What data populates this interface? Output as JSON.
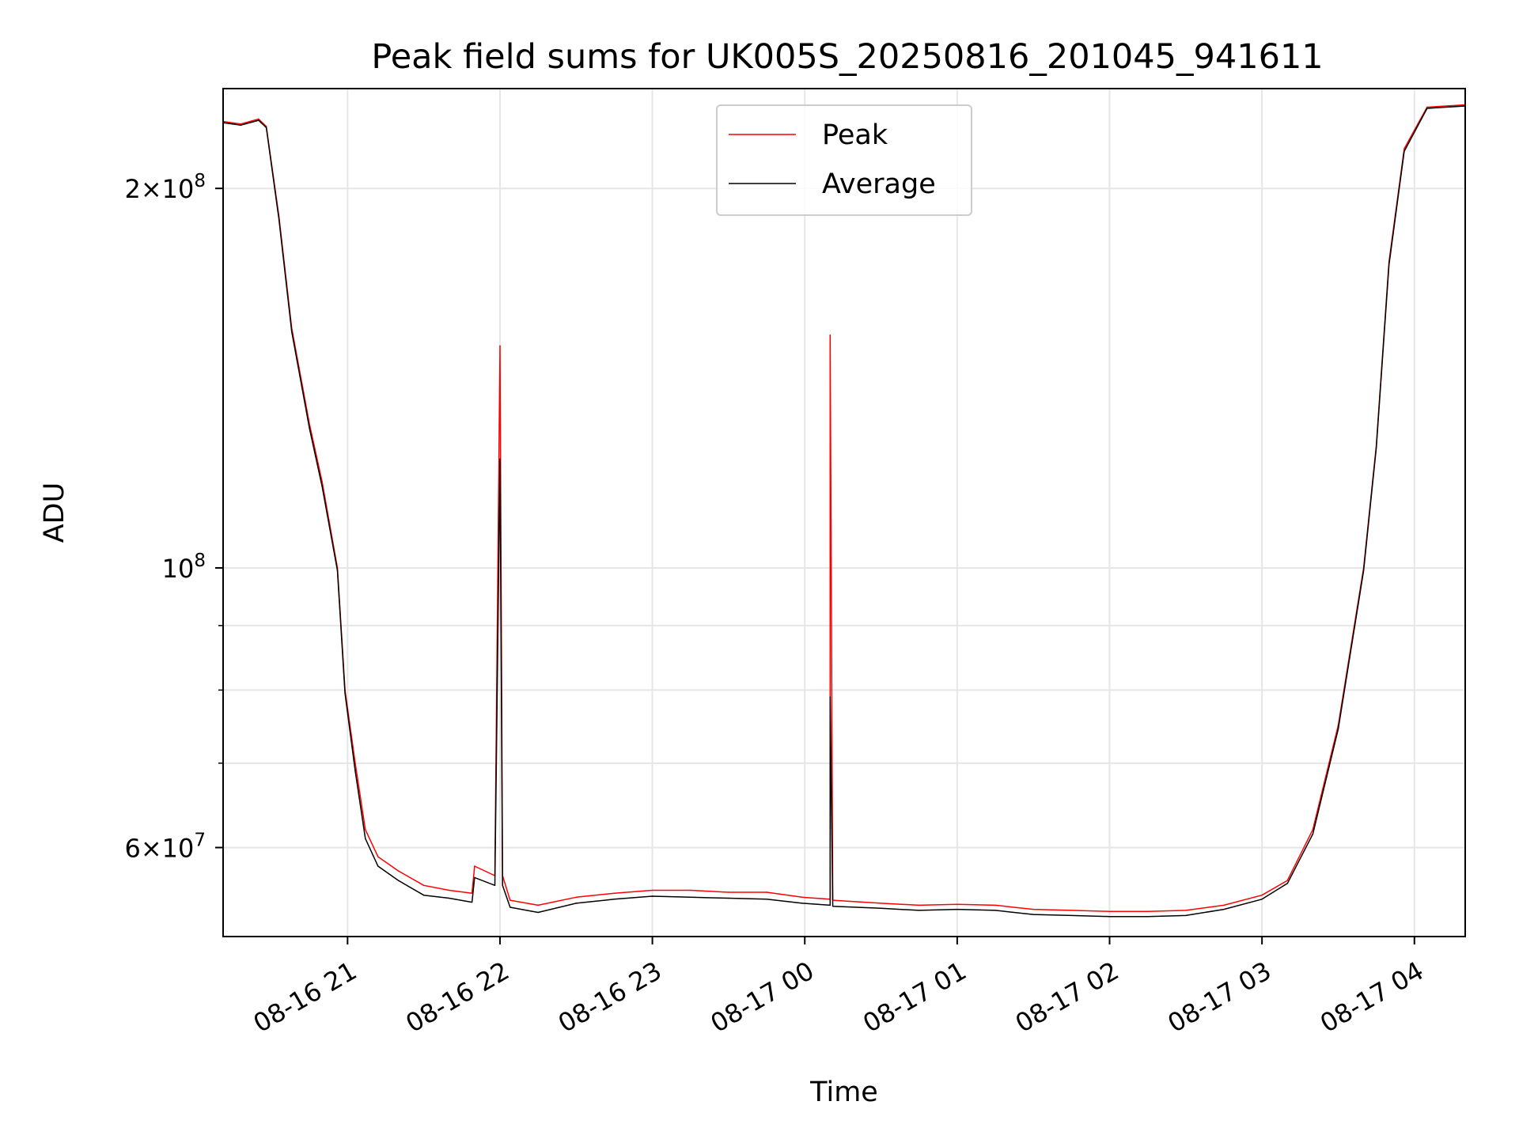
{
  "chart_data": {
    "type": "line",
    "title": "Peak field sums for UK005S_20250816_201045_941611",
    "xlabel": "Time",
    "ylabel": "ADU",
    "x_start": "2025-08-16 20:11",
    "x_end": "2025-08-17 04:20",
    "y_scale": "log",
    "ylim": [
      51000000,
      240000000
    ],
    "grid": true,
    "legend_position": "upper center",
    "x_ticks": [
      {
        "x": "2025-08-16 21:00",
        "label": "08-16 21"
      },
      {
        "x": "2025-08-16 22:00",
        "label": "08-16 22"
      },
      {
        "x": "2025-08-16 23:00",
        "label": "08-16 23"
      },
      {
        "x": "2025-08-17 00:00",
        "label": "08-17 00"
      },
      {
        "x": "2025-08-17 01:00",
        "label": "08-17 01"
      },
      {
        "x": "2025-08-17 02:00",
        "label": "08-17 02"
      },
      {
        "x": "2025-08-17 03:00",
        "label": "08-17 03"
      },
      {
        "x": "2025-08-17 04:00",
        "label": "08-17 04"
      }
    ],
    "y_ticks_major": [
      {
        "y": 60000000,
        "base": "6×10",
        "exp": "7"
      },
      {
        "y": 100000000,
        "base": "10",
        "exp": "8"
      },
      {
        "y": 200000000,
        "base": "2×10",
        "exp": "8"
      }
    ],
    "y_ticks_minor": [
      70000000,
      80000000,
      90000000
    ],
    "series": [
      {
        "name": "Peak",
        "color": "#ff0000",
        "points": [
          [
            "2025-08-16 20:11",
            226000000
          ],
          [
            "2025-08-16 20:18",
            225000000
          ],
          [
            "2025-08-16 20:25",
            227000000
          ],
          [
            "2025-08-16 20:28",
            224000000
          ],
          [
            "2025-08-16 20:33",
            190000000
          ],
          [
            "2025-08-16 20:38",
            155000000
          ],
          [
            "2025-08-16 20:45",
            130000000
          ],
          [
            "2025-08-16 20:50",
            117000000
          ],
          [
            "2025-08-16 20:56",
            100000000
          ],
          [
            "2025-08-16 20:59",
            80000000
          ],
          [
            "2025-08-16 21:03",
            70000000
          ],
          [
            "2025-08-16 21:07",
            62000000
          ],
          [
            "2025-08-16 21:12",
            59000000
          ],
          [
            "2025-08-16 21:20",
            57500000
          ],
          [
            "2025-08-16 21:30",
            56000000
          ],
          [
            "2025-08-16 21:40",
            55500000
          ],
          [
            "2025-08-16 21:49",
            55200000
          ],
          [
            "2025-08-16 21:50",
            58000000
          ],
          [
            "2025-08-16 21:58",
            57000000
          ],
          [
            "2025-08-16 22:00",
            150000000
          ],
          [
            "2025-08-16 22:01",
            57000000
          ],
          [
            "2025-08-16 22:04",
            54500000
          ],
          [
            "2025-08-16 22:15",
            54000000
          ],
          [
            "2025-08-16 22:30",
            54800000
          ],
          [
            "2025-08-16 22:45",
            55200000
          ],
          [
            "2025-08-16 23:00",
            55500000
          ],
          [
            "2025-08-16 23:15",
            55500000
          ],
          [
            "2025-08-16 23:30",
            55300000
          ],
          [
            "2025-08-16 23:45",
            55300000
          ],
          [
            "2025-08-16 23:59",
            54800000
          ],
          [
            "2025-08-17 00:10",
            54600000
          ],
          [
            "2025-08-17 00:10",
            153000000
          ],
          [
            "2025-08-17 00:11",
            54500000
          ],
          [
            "2025-08-17 00:30",
            54200000
          ],
          [
            "2025-08-17 00:45",
            54000000
          ],
          [
            "2025-08-17 01:00",
            54100000
          ],
          [
            "2025-08-17 01:15",
            54000000
          ],
          [
            "2025-08-17 01:30",
            53600000
          ],
          [
            "2025-08-17 01:45",
            53500000
          ],
          [
            "2025-08-17 02:00",
            53400000
          ],
          [
            "2025-08-17 02:15",
            53400000
          ],
          [
            "2025-08-17 02:30",
            53500000
          ],
          [
            "2025-08-17 02:45",
            54000000
          ],
          [
            "2025-08-17 03:00",
            55000000
          ],
          [
            "2025-08-17 03:10",
            56500000
          ],
          [
            "2025-08-17 03:20",
            62000000
          ],
          [
            "2025-08-17 03:30",
            75000000
          ],
          [
            "2025-08-17 03:40",
            100000000
          ],
          [
            "2025-08-17 03:45",
            125000000
          ],
          [
            "2025-08-17 03:50",
            175000000
          ],
          [
            "2025-08-17 03:56",
            215000000
          ],
          [
            "2025-08-17 04:05",
            232000000
          ],
          [
            "2025-08-17 04:20",
            233000000
          ]
        ]
      },
      {
        "name": "Average",
        "color": "#000000",
        "points": [
          [
            "2025-08-16 20:11",
            225500000
          ],
          [
            "2025-08-16 20:18",
            224500000
          ],
          [
            "2025-08-16 20:25",
            226500000
          ],
          [
            "2025-08-16 20:28",
            223500000
          ],
          [
            "2025-08-16 20:33",
            189000000
          ],
          [
            "2025-08-16 20:38",
            154000000
          ],
          [
            "2025-08-16 20:45",
            129000000
          ],
          [
            "2025-08-16 20:50",
            116000000
          ],
          [
            "2025-08-16 20:56",
            99500000
          ],
          [
            "2025-08-16 20:59",
            79500000
          ],
          [
            "2025-08-16 21:03",
            69000000
          ],
          [
            "2025-08-16 21:07",
            61000000
          ],
          [
            "2025-08-16 21:12",
            58000000
          ],
          [
            "2025-08-16 21:20",
            56500000
          ],
          [
            "2025-08-16 21:30",
            55000000
          ],
          [
            "2025-08-16 21:40",
            54700000
          ],
          [
            "2025-08-16 21:49",
            54300000
          ],
          [
            "2025-08-16 21:50",
            56800000
          ],
          [
            "2025-08-16 21:58",
            56000000
          ],
          [
            "2025-08-16 22:00",
            122000000
          ],
          [
            "2025-08-16 22:01",
            56000000
          ],
          [
            "2025-08-16 22:04",
            53800000
          ],
          [
            "2025-08-16 22:15",
            53300000
          ],
          [
            "2025-08-16 22:30",
            54200000
          ],
          [
            "2025-08-16 22:45",
            54600000
          ],
          [
            "2025-08-16 23:00",
            54900000
          ],
          [
            "2025-08-16 23:15",
            54800000
          ],
          [
            "2025-08-16 23:30",
            54700000
          ],
          [
            "2025-08-16 23:45",
            54600000
          ],
          [
            "2025-08-16 23:59",
            54200000
          ],
          [
            "2025-08-17 00:10",
            54000000
          ],
          [
            "2025-08-17 00:10",
            79000000
          ],
          [
            "2025-08-17 00:11",
            53900000
          ],
          [
            "2025-08-17 00:30",
            53700000
          ],
          [
            "2025-08-17 00:45",
            53500000
          ],
          [
            "2025-08-17 01:00",
            53600000
          ],
          [
            "2025-08-17 01:15",
            53500000
          ],
          [
            "2025-08-17 01:30",
            53100000
          ],
          [
            "2025-08-17 01:45",
            53000000
          ],
          [
            "2025-08-17 02:00",
            52900000
          ],
          [
            "2025-08-17 02:15",
            52900000
          ],
          [
            "2025-08-17 02:30",
            53000000
          ],
          [
            "2025-08-17 02:45",
            53600000
          ],
          [
            "2025-08-17 03:00",
            54600000
          ],
          [
            "2025-08-17 03:10",
            56200000
          ],
          [
            "2025-08-17 03:20",
            61500000
          ],
          [
            "2025-08-17 03:30",
            74500000
          ],
          [
            "2025-08-17 03:40",
            99500000
          ],
          [
            "2025-08-17 03:45",
            124500000
          ],
          [
            "2025-08-17 03:50",
            174000000
          ],
          [
            "2025-08-17 03:56",
            214000000
          ],
          [
            "2025-08-17 04:05",
            231500000
          ],
          [
            "2025-08-17 04:20",
            232500000
          ]
        ]
      }
    ]
  }
}
